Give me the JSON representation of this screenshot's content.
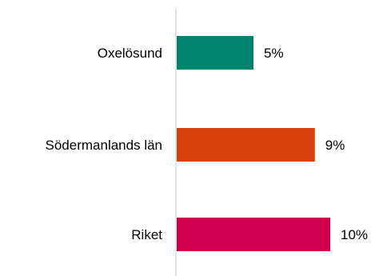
{
  "chart_data": {
    "type": "bar",
    "orientation": "horizontal",
    "title": "",
    "xlabel": "",
    "ylabel": "",
    "categories": [
      "Oxelösund",
      "Södermanlands län",
      "Riket"
    ],
    "values": [
      5,
      9,
      10
    ],
    "value_labels": [
      "5%",
      "9%",
      "10%"
    ],
    "colors": [
      "#00836e",
      "#d6400e",
      "#d1004d"
    ],
    "axis_color": "#d0d0d0",
    "xlim": [
      0,
      10.5
    ],
    "grid": false,
    "legend": "none"
  }
}
